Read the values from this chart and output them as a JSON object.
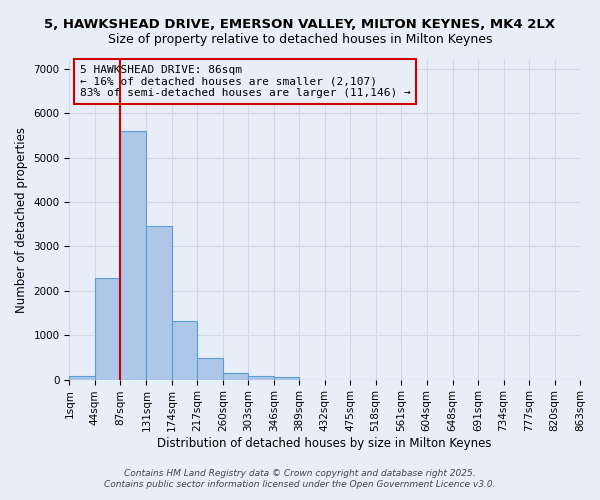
{
  "title_line1": "5, HAWKSHEAD DRIVE, EMERSON VALLEY, MILTON KEYNES, MK4 2LX",
  "title_line2": "Size of property relative to detached houses in Milton Keynes",
  "xlabel": "Distribution of detached houses by size in Milton Keynes",
  "ylabel": "Number of detached properties",
  "bins": [
    "1sqm",
    "44sqm",
    "87sqm",
    "131sqm",
    "174sqm",
    "217sqm",
    "260sqm",
    "303sqm",
    "346sqm",
    "389sqm",
    "432sqm",
    "475sqm",
    "518sqm",
    "561sqm",
    "604sqm",
    "648sqm",
    "691sqm",
    "734sqm",
    "777sqm",
    "820sqm",
    "863sqm"
  ],
  "bin_edges": [
    1,
    44,
    87,
    131,
    174,
    217,
    260,
    303,
    346,
    389,
    432,
    475,
    518,
    561,
    604,
    648,
    691,
    734,
    777,
    820,
    863
  ],
  "bar_heights": [
    75,
    2300,
    5600,
    3450,
    1320,
    480,
    150,
    75,
    50,
    0,
    0,
    0,
    0,
    0,
    0,
    0,
    0,
    0,
    0,
    0
  ],
  "bar_color": "#aec6e8",
  "bar_edgecolor": "#5a9fd4",
  "bar_linewidth": 0.8,
  "red_line_x": 86,
  "red_line_color": "#cc0000",
  "annotation_line1": "5 HAWKSHEAD DRIVE: 86sqm",
  "annotation_line2": "← 16% of detached houses are smaller (2,107)",
  "annotation_line3": "83% of semi-detached houses are larger (11,146) →",
  "ylim": [
    0,
    7200
  ],
  "grid_color": "#d0d8e8",
  "background_color": "#e8eef8",
  "footer_line1": "Contains HM Land Registry data © Crown copyright and database right 2025.",
  "footer_line2": "Contains public sector information licensed under the Open Government Licence v3.0.",
  "title_fontsize": 9.5,
  "subtitle_fontsize": 9.0,
  "axis_label_fontsize": 8.5,
  "tick_fontsize": 7.5,
  "annotation_fontsize": 8.0,
  "footer_fontsize": 6.5
}
